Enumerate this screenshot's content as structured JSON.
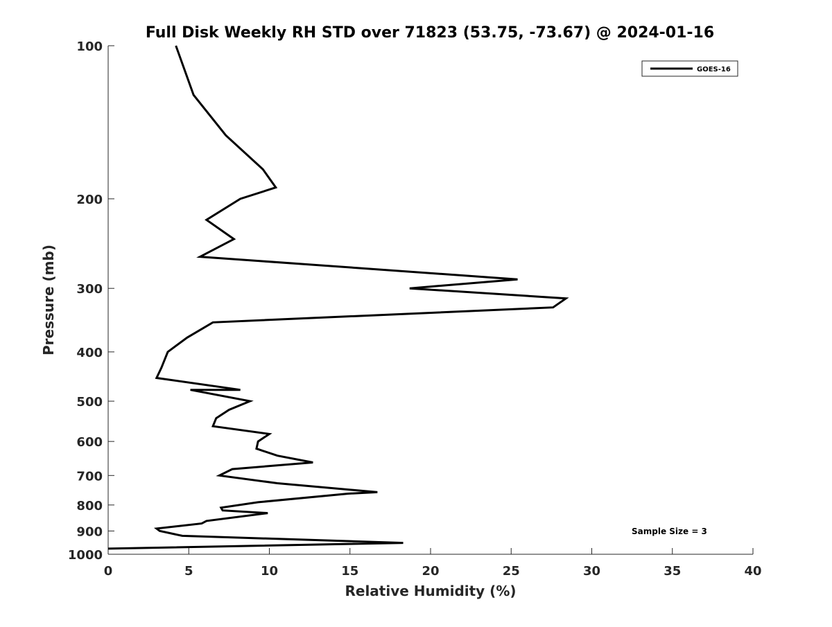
{
  "chart_data": {
    "type": "line",
    "title": "Full Disk Weekly RH STD over 71823 (53.75, -73.67) @ 2024-01-16",
    "xlabel": "Relative Humidity (%)",
    "ylabel": "Pressure (mb)",
    "xlim": [
      0,
      40
    ],
    "ylim": [
      100,
      1000
    ],
    "yscale": "log",
    "y_inverted": true,
    "x_ticks": [
      "0",
      "5",
      "10",
      "15",
      "20",
      "25",
      "30",
      "35",
      "40"
    ],
    "y_ticks": [
      "100",
      "200",
      "300",
      "400",
      "500",
      "600",
      "700",
      "800",
      "900",
      "1000"
    ],
    "grid": false,
    "legend": {
      "position": "top-right",
      "entries": [
        "GOES-16"
      ]
    },
    "annotation": "Sample Size = 3",
    "line_color": "#000000",
    "series": [
      {
        "name": "GOES-16",
        "points": [
          [
            4.2,
            100
          ],
          [
            5.3,
            125
          ],
          [
            7.3,
            150
          ],
          [
            9.6,
            175
          ],
          [
            10.4,
            190
          ],
          [
            8.2,
            200
          ],
          [
            6.1,
            220
          ],
          [
            7.8,
            240
          ],
          [
            5.7,
            260
          ],
          [
            25.4,
            288
          ],
          [
            18.7,
            300
          ],
          [
            28.4,
            314
          ],
          [
            27.6,
            327
          ],
          [
            6.5,
            350
          ],
          [
            4.9,
            375
          ],
          [
            3.7,
            400
          ],
          [
            3.3,
            430
          ],
          [
            3.0,
            450
          ],
          [
            8.2,
            475
          ],
          [
            5.1,
            475
          ],
          [
            8.8,
            500
          ],
          [
            7.5,
            520
          ],
          [
            6.7,
            540
          ],
          [
            6.5,
            560
          ],
          [
            10.0,
            580
          ],
          [
            9.3,
            600
          ],
          [
            9.2,
            620
          ],
          [
            10.5,
            640
          ],
          [
            12.7,
            660
          ],
          [
            7.7,
            680
          ],
          [
            6.9,
            700
          ],
          [
            10.5,
            725
          ],
          [
            16.7,
            755
          ],
          [
            14.9,
            760
          ],
          [
            9.3,
            790
          ],
          [
            7.0,
            810
          ],
          [
            7.1,
            820
          ],
          [
            9.9,
            830
          ],
          [
            6.1,
            860
          ],
          [
            5.8,
            870
          ],
          [
            3.0,
            890
          ],
          [
            3.2,
            900
          ],
          [
            4.6,
            920
          ],
          [
            18.3,
            950
          ],
          [
            0.0,
            975
          ]
        ]
      }
    ]
  }
}
